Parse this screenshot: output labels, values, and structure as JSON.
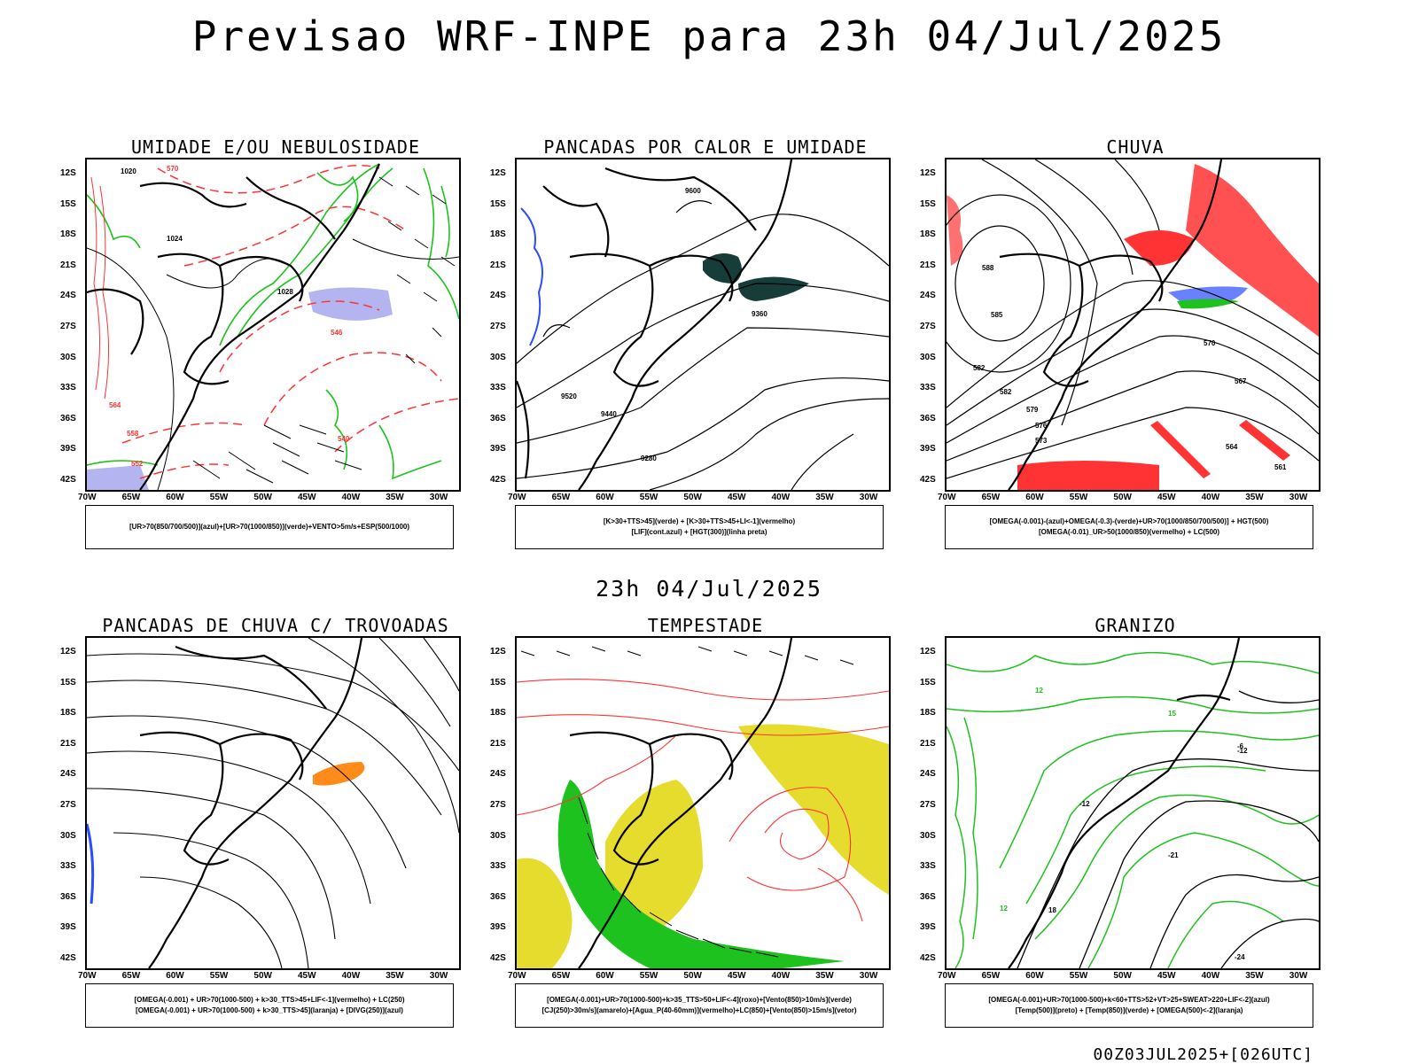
{
  "title": "Previsao WRF-INPE  para 23h 04/Jul/2025",
  "subtitle": "23h 04/Jul/2025",
  "footer": "00Z03JUL2025+[026UTC]",
  "axes": {
    "lat_labels": [
      "12S",
      "15S",
      "18S",
      "21S",
      "24S",
      "27S",
      "30S",
      "33S",
      "36S",
      "39S",
      "42S"
    ],
    "lon_labels": [
      "70W",
      "65W",
      "60W",
      "55W",
      "50W",
      "45W",
      "40W",
      "35W",
      "30W"
    ]
  },
  "colors": {
    "green": "#1ec21e",
    "red": "#ff3333",
    "blue": "#2a4bff",
    "lavender": "#b4b4f0",
    "yellow": "#e6dc2d",
    "orange": "#ff8c1a",
    "darkteal": "#173d3a"
  },
  "panels": [
    {
      "title": "UMIDADE E/OU NEBULOSIDADE",
      "legend": [
        "[UR>70(850/700/500)](azul)+[UR>70(1000/850)](verde)+VENTO>5m/s+ESP(500/1000)"
      ],
      "labels": [
        "1020",
        "1024",
        "1028",
        "570",
        "564",
        "558",
        "552",
        "546",
        "540"
      ]
    },
    {
      "title": "PANCADAS POR CALOR E UMIDADE",
      "legend": [
        "[K>30+TTS>45](verde) + [K>30+TTS>45+LI<-1](vermelho)",
        "[LIF](cont.azul) + [HGT(300)](linha preta)"
      ],
      "labels": [
        "9600",
        "9520",
        "9440",
        "9360",
        "9280"
      ]
    },
    {
      "title": "CHUVA",
      "legend": [
        "[OMEGA(-0.001)-(azul)+OMEGA(-0.3)-(verde)+UR>70(1000/850/700/500)] + HGT(500)",
        "[OMEGA(-0.01)_UR>50(1000/850)(vermelho) + LC(500)"
      ],
      "labels": [
        "588",
        "585",
        "582",
        "579",
        "576",
        "573",
        "570",
        "567",
        "564",
        "561"
      ]
    },
    {
      "title": "PANCADAS DE CHUVA C/ TROVOADAS",
      "legend": [
        "[OMEGA(-0.001) + UR>70(1000-500) + k>30_TTS>45+LIF<-1](vermelho) + LC(250)",
        "[OMEGA(-0.001) + UR>70(1000-500) + k>30_TTS>45](laranja) + [DIVG(250)](azul)"
      ],
      "labels": []
    },
    {
      "title": "TEMPESTADE",
      "legend": [
        "[OMEGA(-0.001)+UR>70(1000-500)+k>35_TTS>50+LIF<-4](roxo)+[Vento(850)>10m/s](verde)",
        "[CJ(250)>30m/s](amarelo)+[Agua_P(40-60mm)](vermelho)+LC(850)+[Vento(850)>15m/s](vetor)"
      ],
      "labels": []
    },
    {
      "title": "GRANIZO",
      "legend": [
        "[OMEGA(-0.001)+UR>70(1000-500)+k<60+TTS>52+VT>25+SWEAT>220+LIF<-2](azul)",
        "[Temp(500)](preto) + [Temp(850)](verde) + [OMEGA(500)<-2](laranja)"
      ],
      "labels": [
        "-12",
        "-21",
        "-24",
        "-6",
        "12",
        "15",
        "18"
      ]
    }
  ]
}
